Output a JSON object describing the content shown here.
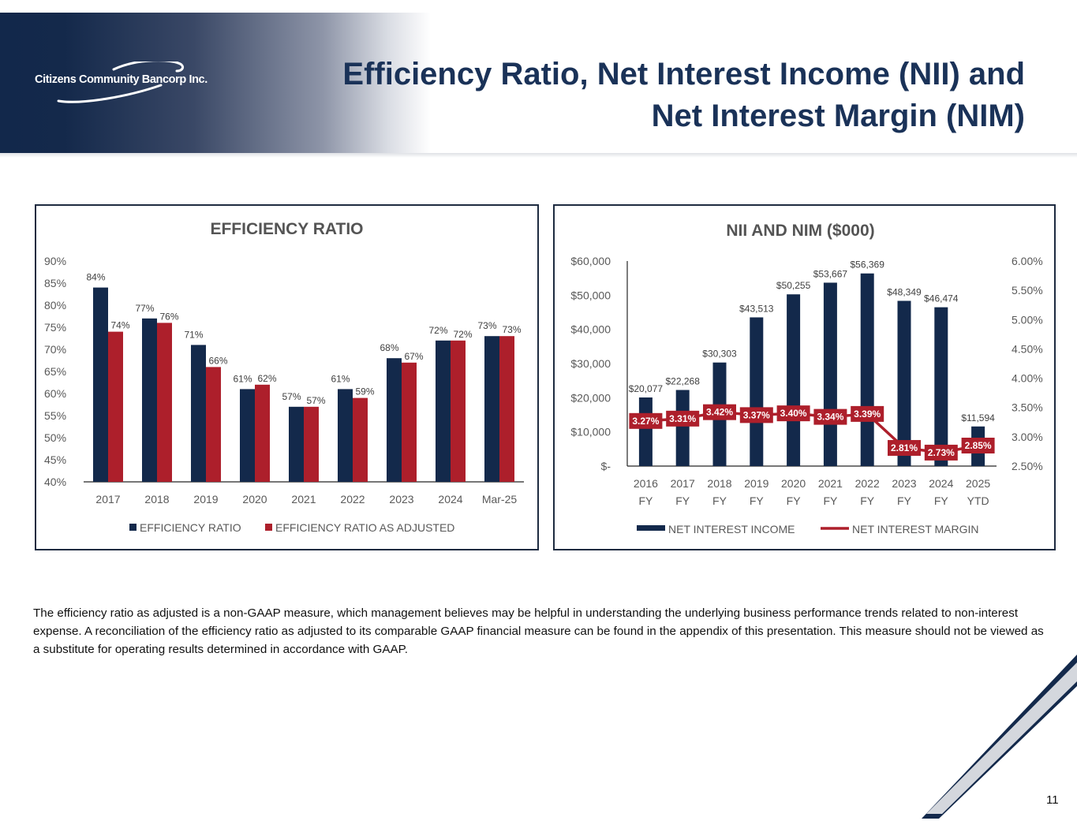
{
  "header": {
    "logo_text": "Citizens Community Bancorp Inc.",
    "title_line1": "Efficiency Ratio, Net Interest Income (NII) and",
    "title_line2": "Net Interest Margin (NIM)"
  },
  "colors": {
    "navy": "#13294b",
    "red": "#ad1f2b",
    "title": "#1a3258"
  },
  "chart_data": [
    {
      "type": "bar",
      "title": "EFFICIENCY RATIO",
      "categories": [
        "2017",
        "2018",
        "2019",
        "2020",
        "2021",
        "2022",
        "2023",
        "2024",
        "Mar-25"
      ],
      "y_ticks": [
        "40%",
        "45%",
        "50%",
        "55%",
        "60%",
        "65%",
        "70%",
        "75%",
        "80%",
        "85%",
        "90%"
      ],
      "ylim": [
        40,
        90
      ],
      "grid": false,
      "legend_position": "bottom",
      "series": [
        {
          "name": "EFFICIENCY RATIO",
          "color": "#13294b",
          "values": [
            84,
            77,
            71,
            61,
            57,
            61,
            68,
            72,
            73
          ],
          "labels": [
            "84%",
            "77%",
            "71%",
            "61%",
            "57%",
            "61%",
            "68%",
            "72%",
            "73%"
          ]
        },
        {
          "name": "EFFICIENCY RATIO AS ADJUSTED",
          "color": "#ad1f2b",
          "values": [
            74,
            76,
            66,
            62,
            57,
            59,
            67,
            72,
            73
          ],
          "labels": [
            "74%",
            "76%",
            "66%",
            "62%",
            "57%",
            "59%",
            "67%",
            "72%",
            "73%"
          ]
        }
      ]
    },
    {
      "type": "bar+line",
      "title": "NII AND NIM ($000)",
      "categories": [
        "2016\nFY",
        "2017\nFY",
        "2018\nFY",
        "2019\nFY",
        "2020\nFY",
        "2021\nFY",
        "2022\nFY",
        "2023\nFY",
        "2024\nFY",
        "2025\nYTD"
      ],
      "category_lines": [
        [
          "2016",
          "FY"
        ],
        [
          "2017",
          "FY"
        ],
        [
          "2018",
          "FY"
        ],
        [
          "2019",
          "FY"
        ],
        [
          "2020",
          "FY"
        ],
        [
          "2021",
          "FY"
        ],
        [
          "2022",
          "FY"
        ],
        [
          "2023",
          "FY"
        ],
        [
          "2024",
          "FY"
        ],
        [
          "2025",
          "YTD"
        ]
      ],
      "y_left_ticks": [
        "$-",
        "$10,000",
        "$20,000",
        "$30,000",
        "$40,000",
        "$50,000",
        "$60,000"
      ],
      "y_left_lim": [
        0,
        60000
      ],
      "y_right_ticks": [
        "2.50%",
        "3.00%",
        "3.50%",
        "4.00%",
        "4.50%",
        "5.00%",
        "5.50%",
        "6.00%"
      ],
      "y_right_lim": [
        2.5,
        6.0
      ],
      "grid": false,
      "legend_position": "bottom",
      "series": [
        {
          "name": "NET INTEREST INCOME",
          "type": "bar",
          "axis": "left",
          "color": "#13294b",
          "values": [
            20077,
            22268,
            30303,
            43513,
            50255,
            53667,
            56369,
            48349,
            46474,
            11594
          ],
          "labels": [
            "$20,077",
            "$22,268",
            "$30,303",
            "$43,513",
            "$50,255",
            "$53,667",
            "$56,369",
            "$48,349",
            "$46,474",
            "$11,594"
          ]
        },
        {
          "name": "NET INTEREST MARGIN",
          "type": "line",
          "axis": "right",
          "color": "#ad1f2b",
          "values": [
            3.27,
            3.31,
            3.42,
            3.37,
            3.4,
            3.34,
            3.39,
            2.81,
            2.73,
            2.85
          ],
          "labels": [
            "3.27%",
            "3.31%",
            "3.42%",
            "3.37%",
            "3.40%",
            "3.34%",
            "3.39%",
            "2.81%",
            "2.73%",
            "2.85%"
          ]
        }
      ]
    }
  ],
  "footnote": "The efficiency ratio as adjusted is a non-GAAP measure, which management believes may be helpful in understanding the underlying business performance trends related to non-interest expense. A reconciliation of the efficiency ratio as adjusted to its comparable GAAP financial measure can be found in the appendix of this presentation. This measure should not be viewed as a substitute for operating results determined in accordance with GAAP.",
  "page_number": "11"
}
